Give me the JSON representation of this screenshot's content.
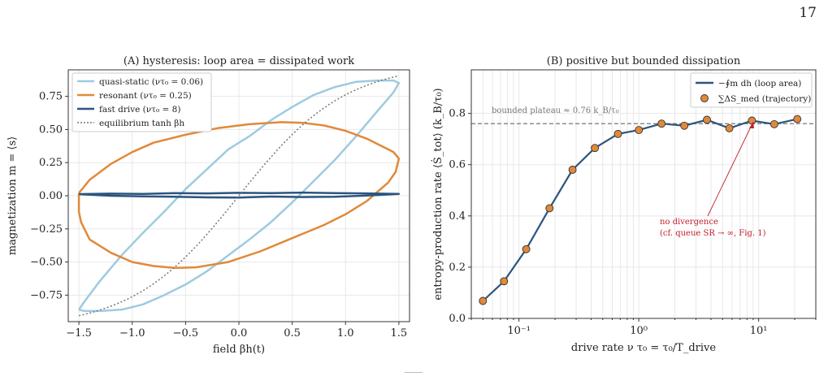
{
  "page_number": "17",
  "chart_data": [
    {
      "type": "line",
      "title": "(A)  hysteresis: loop area  =  dissipated work",
      "xlabel": "field  βh(t)",
      "ylabel": "magnetization  m = ⟨s⟩",
      "xlim": [
        -1.6,
        1.6
      ],
      "ylim": [
        -0.95,
        0.95
      ],
      "xticks": [
        -1.5,
        -1.0,
        -0.5,
        0.0,
        0.5,
        1.0,
        1.5
      ],
      "xtick_labels": [
        "−1.5",
        "−1.0",
        "−0.5",
        "0.0",
        "0.5",
        "1.0",
        "1.5"
      ],
      "yticks": [
        -0.75,
        -0.5,
        -0.25,
        0.0,
        0.25,
        0.5,
        0.75
      ],
      "ytick_labels": [
        "−0.75",
        "−0.50",
        "−0.25",
        "0.00",
        "0.25",
        "0.50",
        "0.75"
      ],
      "grid": true,
      "legend_position": "top-left",
      "series": [
        {
          "name": "quasi-static  (ντ₀ = 0.06)",
          "color": "#9ecae1",
          "kind": "loop",
          "upper": [
            [
              -1.5,
              -0.86
            ],
            [
              -1.45,
              -0.8
            ],
            [
              -1.3,
              -0.64
            ],
            [
              -1.1,
              -0.45
            ],
            [
              -0.9,
              -0.28
            ],
            [
              -0.7,
              -0.12
            ],
            [
              -0.5,
              0.05
            ],
            [
              -0.3,
              0.2
            ],
            [
              -0.1,
              0.35
            ],
            [
              0.1,
              0.45
            ],
            [
              0.3,
              0.57
            ],
            [
              0.5,
              0.67
            ],
            [
              0.7,
              0.76
            ],
            [
              0.9,
              0.82
            ],
            [
              1.1,
              0.86
            ],
            [
              1.3,
              0.87
            ],
            [
              1.45,
              0.87
            ],
            [
              1.5,
              0.85
            ]
          ],
          "lower": [
            [
              1.5,
              0.85
            ],
            [
              1.45,
              0.78
            ],
            [
              1.3,
              0.64
            ],
            [
              1.1,
              0.45
            ],
            [
              0.9,
              0.27
            ],
            [
              0.7,
              0.11
            ],
            [
              0.5,
              -0.05
            ],
            [
              0.3,
              -0.2
            ],
            [
              0.1,
              -0.33
            ],
            [
              -0.1,
              -0.45
            ],
            [
              -0.3,
              -0.57
            ],
            [
              -0.5,
              -0.67
            ],
            [
              -0.7,
              -0.75
            ],
            [
              -0.9,
              -0.82
            ],
            [
              -1.1,
              -0.86
            ],
            [
              -1.3,
              -0.87
            ],
            [
              -1.45,
              -0.87
            ],
            [
              -1.5,
              -0.86
            ]
          ]
        },
        {
          "name": "resonant  (ντ₀ = 0.25)",
          "color": "#e0893a",
          "kind": "loop",
          "upper": [
            [
              -1.5,
              0.02
            ],
            [
              -1.4,
              0.12
            ],
            [
              -1.2,
              0.24
            ],
            [
              -1.0,
              0.33
            ],
            [
              -0.8,
              0.4
            ],
            [
              -0.5,
              0.46
            ],
            [
              -0.2,
              0.51
            ],
            [
              0.1,
              0.54
            ],
            [
              0.4,
              0.555
            ],
            [
              0.6,
              0.55
            ],
            [
              0.8,
              0.53
            ],
            [
              1.0,
              0.49
            ],
            [
              1.2,
              0.43
            ],
            [
              1.35,
              0.37
            ],
            [
              1.45,
              0.33
            ],
            [
              1.5,
              0.28
            ]
          ],
          "lower": [
            [
              1.5,
              0.28
            ],
            [
              1.47,
              0.18
            ],
            [
              1.4,
              0.1
            ],
            [
              1.2,
              -0.04
            ],
            [
              1.0,
              -0.14
            ],
            [
              0.8,
              -0.22
            ],
            [
              0.5,
              -0.32
            ],
            [
              0.2,
              -0.42
            ],
            [
              -0.1,
              -0.5
            ],
            [
              -0.4,
              -0.54
            ],
            [
              -0.6,
              -0.545
            ],
            [
              -0.8,
              -0.53
            ],
            [
              -1.0,
              -0.5
            ],
            [
              -1.2,
              -0.43
            ],
            [
              -1.4,
              -0.33
            ],
            [
              -1.48,
              -0.2
            ],
            [
              -1.5,
              -0.12
            ],
            [
              -1.5,
              0.02
            ]
          ]
        },
        {
          "name": "fast drive  (ντ₀ = 8)",
          "color": "#2b557e",
          "kind": "loop",
          "upper": [
            [
              -1.5,
              0.012
            ],
            [
              -1.2,
              0.016
            ],
            [
              -0.9,
              0.014
            ],
            [
              -0.6,
              0.02
            ],
            [
              -0.3,
              0.018
            ],
            [
              0.0,
              0.022
            ],
            [
              0.3,
              0.02
            ],
            [
              0.6,
              0.024
            ],
            [
              0.9,
              0.02
            ],
            [
              1.2,
              0.018
            ],
            [
              1.5,
              0.014
            ]
          ],
          "lower": [
            [
              1.5,
              0.008
            ],
            [
              1.2,
              0.002
            ],
            [
              0.9,
              -0.008
            ],
            [
              0.6,
              -0.01
            ],
            [
              0.3,
              -0.006
            ],
            [
              0.0,
              -0.014
            ],
            [
              -0.3,
              -0.012
            ],
            [
              -0.6,
              -0.008
            ],
            [
              -0.9,
              -0.004
            ],
            [
              -1.2,
              0.0
            ],
            [
              -1.5,
              0.012
            ]
          ]
        },
        {
          "name": "equilibrium tanh βh",
          "color": "#777777",
          "kind": "tanh",
          "dashed": true
        }
      ]
    },
    {
      "type": "line",
      "title": "(B)  positive but bounded dissipation",
      "xlabel": "drive rate  ν τ₀ = τ₀/T_drive",
      "ylabel": "entropy-production rate  ⟨Ṡ_tot⟩  (k_B/τ₀)",
      "xscale": "log",
      "xlim": [
        0.04,
        30
      ],
      "ylim": [
        0.0,
        0.97
      ],
      "xticks": [
        0.1,
        1,
        10
      ],
      "xtick_labels": [
        "10⁻¹",
        "10⁰",
        "10¹"
      ],
      "yticks": [
        0.0,
        0.2,
        0.4,
        0.6,
        0.8
      ],
      "ytick_labels": [
        "0.0",
        "0.2",
        "0.4",
        "0.6",
        "0.8"
      ],
      "grid": true,
      "legend_position": "top-right",
      "plateau": {
        "y": 0.76,
        "label": "bounded plateau  ≈ 0.76 k_B/τ₀"
      },
      "annotation": {
        "line1": "no divergence",
        "line2": "(cf. queue SR → ∞, Fig. 1)",
        "color": "#c0202a"
      },
      "series": [
        {
          "name": "−∮m dh (loop area)",
          "color": "#2b557e",
          "x": [
            0.05,
            0.075,
            0.115,
            0.18,
            0.28,
            0.43,
            0.67,
            1.0,
            1.55,
            2.4,
            3.7,
            5.7,
            8.8,
            13.5,
            21
          ],
          "y": [
            0.068,
            0.145,
            0.27,
            0.43,
            0.58,
            0.665,
            0.72,
            0.735,
            0.76,
            0.752,
            0.775,
            0.742,
            0.772,
            0.758,
            0.778
          ]
        },
        {
          "name": "∑ΔS_med (trajectory)",
          "color": "#e0893a",
          "kind": "markers",
          "x": [
            0.05,
            0.075,
            0.115,
            0.18,
            0.28,
            0.43,
            0.67,
            1.0,
            1.55,
            2.4,
            3.7,
            5.7,
            8.8,
            13.5,
            21
          ],
          "y": [
            0.068,
            0.145,
            0.27,
            0.43,
            0.58,
            0.665,
            0.72,
            0.735,
            0.76,
            0.752,
            0.775,
            0.742,
            0.772,
            0.758,
            0.778
          ]
        }
      ]
    }
  ]
}
